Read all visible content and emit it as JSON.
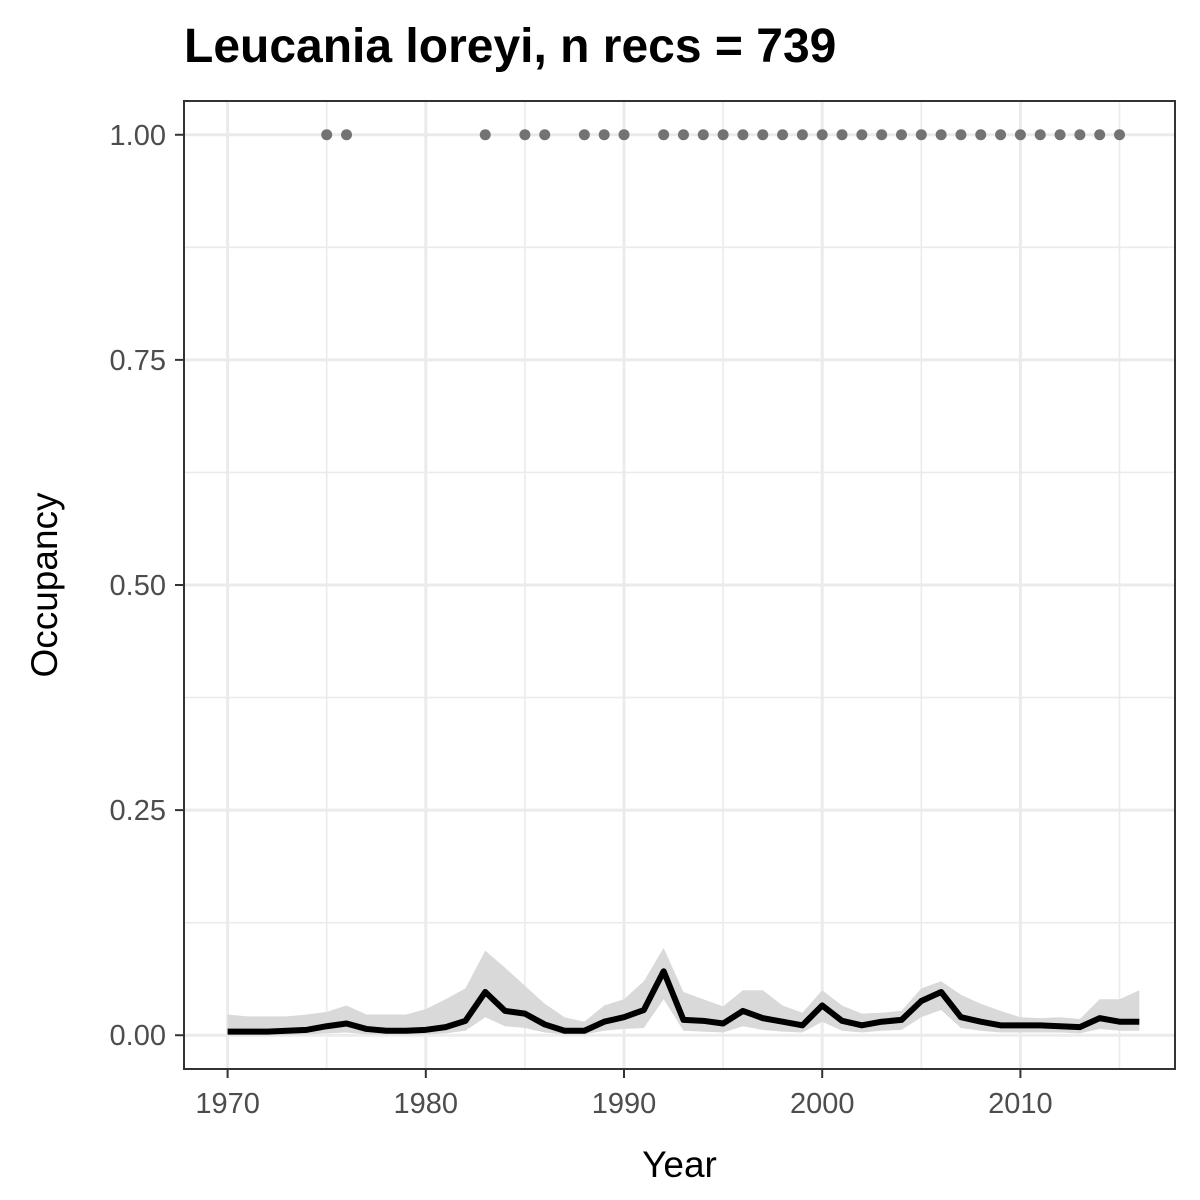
{
  "chart_data": {
    "type": "line",
    "title": "Leucania loreyi, n recs = 739",
    "xlabel": "Year",
    "ylabel": "Occupancy",
    "xlim": [
      1967.8,
      2017.8
    ],
    "ylim": [
      -0.0375,
      1.0375
    ],
    "x_ticks": [
      1970,
      1980,
      1990,
      2000,
      2010
    ],
    "x_tick_labels": [
      "1970",
      "1980",
      "1990",
      "2000",
      "2010"
    ],
    "y_ticks": [
      0,
      0.25,
      0.5,
      0.75,
      1
    ],
    "y_tick_labels": [
      "0.00",
      "0.25",
      "0.50",
      "0.75",
      "1.00"
    ],
    "x_minor_ticks": [
      1975,
      1985,
      1995,
      2005,
      2015
    ],
    "y_minor_ticks": [
      0.125,
      0.375,
      0.625,
      0.875
    ],
    "grid": true,
    "colors": {
      "line": "#000000",
      "ribbon": "#d9d9d9",
      "points": "#737373",
      "grid": "#ebebeb",
      "border": "#333333"
    },
    "series": [
      {
        "type": "line-with-ribbon",
        "x": [
          1970,
          1971,
          1972,
          1973,
          1974,
          1975,
          1976,
          1977,
          1978,
          1979,
          1980,
          1981,
          1982,
          1983,
          1984,
          1985,
          1986,
          1987,
          1988,
          1989,
          1990,
          1991,
          1992,
          1993,
          1994,
          1995,
          1996,
          1997,
          1998,
          1999,
          2000,
          2001,
          2002,
          2003,
          2004,
          2005,
          2006,
          2007,
          2008,
          2009,
          2010,
          2011,
          2012,
          2013,
          2014,
          2015,
          2016
        ],
        "y": [
          0.004,
          0.004,
          0.004,
          0.005,
          0.006,
          0.01,
          0.013,
          0.007,
          0.005,
          0.005,
          0.006,
          0.009,
          0.016,
          0.048,
          0.027,
          0.024,
          0.012,
          0.005,
          0.005,
          0.015,
          0.02,
          0.028,
          0.071,
          0.017,
          0.016,
          0.013,
          0.027,
          0.019,
          0.015,
          0.011,
          0.033,
          0.016,
          0.011,
          0.015,
          0.017,
          0.038,
          0.048,
          0.02,
          0.015,
          0.011,
          0.011,
          0.011,
          0.01,
          0.009,
          0.019,
          0.015,
          0.015
        ],
        "lower": [
          0.0,
          0.0,
          0.0,
          0.0,
          0.001,
          0.002,
          0.003,
          0.001,
          0.001,
          0.001,
          0.001,
          0.002,
          0.005,
          0.02,
          0.01,
          0.008,
          0.003,
          0.001,
          0.001,
          0.005,
          0.007,
          0.008,
          0.04,
          0.005,
          0.004,
          0.003,
          0.01,
          0.006,
          0.004,
          0.003,
          0.015,
          0.005,
          0.003,
          0.005,
          0.006,
          0.02,
          0.028,
          0.008,
          0.005,
          0.003,
          0.003,
          0.003,
          0.003,
          0.002,
          0.007,
          0.005,
          0.005
        ],
        "upper": [
          0.023,
          0.021,
          0.021,
          0.021,
          0.023,
          0.026,
          0.033,
          0.023,
          0.023,
          0.023,
          0.029,
          0.04,
          0.052,
          0.094,
          0.075,
          0.055,
          0.035,
          0.02,
          0.015,
          0.033,
          0.04,
          0.06,
          0.097,
          0.048,
          0.04,
          0.032,
          0.05,
          0.05,
          0.033,
          0.025,
          0.05,
          0.033,
          0.024,
          0.025,
          0.027,
          0.052,
          0.06,
          0.045,
          0.035,
          0.027,
          0.02,
          0.019,
          0.02,
          0.018,
          0.04,
          0.04,
          0.05
        ]
      },
      {
        "type": "points",
        "x": [
          1975,
          1976,
          1983,
          1985,
          1986,
          1988,
          1989,
          1990,
          1992,
          1993,
          1994,
          1995,
          1996,
          1997,
          1998,
          1999,
          2000,
          2001,
          2002,
          2003,
          2004,
          2005,
          2006,
          2007,
          2008,
          2009,
          2010,
          2011,
          2012,
          2013,
          2014,
          2015
        ],
        "y": [
          1,
          1,
          1,
          1,
          1,
          1,
          1,
          1,
          1,
          1,
          1,
          1,
          1,
          1,
          1,
          1,
          1,
          1,
          1,
          1,
          1,
          1,
          1,
          1,
          1,
          1,
          1,
          1,
          1,
          1,
          1,
          1
        ]
      }
    ]
  }
}
